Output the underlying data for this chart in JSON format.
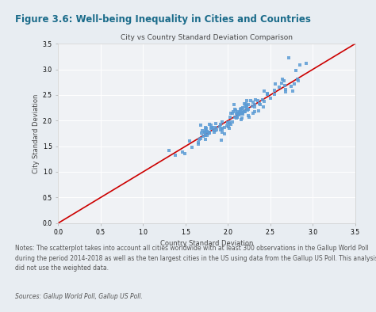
{
  "title": "Figure 3.6: Well-being Inequality in Cities and Countries",
  "plot_title": "City vs Country Standard Deviation Comparison",
  "xlabel": "Country Standard Deviation",
  "ylabel": "City Standard Deviation",
  "xlim": [
    0,
    3.5
  ],
  "ylim": [
    0,
    3.5
  ],
  "xticks": [
    0,
    0.5,
    1,
    1.5,
    2,
    2.5,
    3,
    3.5
  ],
  "yticks": [
    0,
    0.5,
    1,
    1.5,
    2,
    2.5,
    3,
    3.5
  ],
  "scatter_color": "#5b9bd5",
  "line_color": "#cc0000",
  "plot_bg": "#e8edf2",
  "inner_bg": "#f0f2f5",
  "outer_bg": "#e8edf2",
  "title_color": "#1a6b8a",
  "line_color_title": "#2e9abf",
  "notes_color": "#555555",
  "title_fontsize": 8.5,
  "plot_title_fontsize": 6.5,
  "tick_fontsize": 5.5,
  "axis_label_fontsize": 6.0,
  "notes_fontsize": 5.5,
  "notes_text": "Notes: The scatterplot takes into account all cities worldwide with at least 300 observations in the Gallup World Poll\nduring the period 2014-2018 as well as the ten largest cities in the US using data from the Gallup US Poll. This analysis\ndid not use the weighted data.",
  "sources_text": "Sources: Gallup World Poll, Gallup US Poll."
}
